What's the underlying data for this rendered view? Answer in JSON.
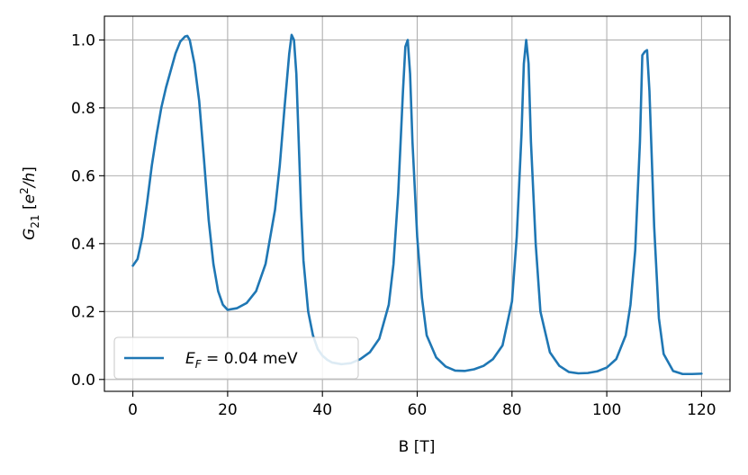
{
  "chart_data": {
    "type": "line",
    "xlabel": "B [T]",
    "ylabel": {
      "base": "G",
      "sub": "21",
      "bracket_open": " [",
      "unit_e": "e",
      "unit_sup": "2",
      "unit_rest": "/h",
      "bracket_close": "]"
    },
    "xlim": [
      -6,
      126
    ],
    "ylim": [
      -0.035,
      1.07
    ],
    "xticks": [
      0,
      20,
      40,
      60,
      80,
      100,
      120
    ],
    "yticks": [
      0.0,
      0.2,
      0.4,
      0.6,
      0.8,
      1.0
    ],
    "xtick_labels": [
      "0",
      "20",
      "40",
      "60",
      "80",
      "100",
      "120"
    ],
    "ytick_labels": [
      "0.0",
      "0.2",
      "0.4",
      "0.6",
      "0.8",
      "1.0"
    ],
    "grid": true,
    "legend_location": "lower-left",
    "series": [
      {
        "name": {
          "sym": "E",
          "sub": "F",
          "rest": " = 0.04 meV"
        },
        "color": "#1f77b4",
        "x": [
          0,
          1,
          2,
          3,
          4,
          5,
          6,
          7,
          8,
          9,
          10,
          11,
          11.5,
          12,
          13,
          14,
          15,
          16,
          17,
          18,
          19,
          20,
          22,
          24,
          26,
          28,
          30,
          31,
          32,
          33,
          33.5,
          34,
          34.5,
          35,
          35.5,
          36,
          37,
          38,
          39,
          40,
          41,
          42,
          44,
          46,
          48,
          50,
          52,
          54,
          55,
          56,
          57,
          57.5,
          58,
          58.5,
          59,
          60,
          61,
          62,
          64,
          66,
          68,
          70,
          72,
          74,
          76,
          78,
          80,
          81,
          82,
          82.5,
          83,
          83.5,
          84,
          85,
          86,
          88,
          90,
          92,
          94,
          96,
          98,
          100,
          102,
          104,
          105,
          106,
          107,
          107.5,
          108,
          108.5,
          109,
          110,
          111,
          112,
          114,
          116,
          118,
          120
        ],
        "y": [
          0.335,
          0.355,
          0.42,
          0.52,
          0.63,
          0.72,
          0.8,
          0.86,
          0.91,
          0.96,
          0.995,
          1.01,
          1.012,
          1.0,
          0.93,
          0.82,
          0.65,
          0.47,
          0.34,
          0.26,
          0.22,
          0.205,
          0.21,
          0.225,
          0.26,
          0.34,
          0.5,
          0.63,
          0.8,
          0.96,
          1.015,
          1.0,
          0.9,
          0.7,
          0.5,
          0.35,
          0.2,
          0.13,
          0.09,
          0.07,
          0.058,
          0.05,
          0.045,
          0.048,
          0.06,
          0.08,
          0.12,
          0.22,
          0.34,
          0.55,
          0.85,
          0.98,
          1.0,
          0.9,
          0.7,
          0.42,
          0.24,
          0.13,
          0.065,
          0.038,
          0.026,
          0.025,
          0.03,
          0.04,
          0.06,
          0.1,
          0.23,
          0.42,
          0.72,
          0.93,
          1.0,
          0.93,
          0.7,
          0.4,
          0.2,
          0.08,
          0.04,
          0.022,
          0.018,
          0.019,
          0.024,
          0.035,
          0.06,
          0.13,
          0.22,
          0.38,
          0.7,
          0.955,
          0.965,
          0.97,
          0.85,
          0.45,
          0.18,
          0.075,
          0.025,
          0.016,
          0.016,
          0.017
        ]
      }
    ]
  }
}
